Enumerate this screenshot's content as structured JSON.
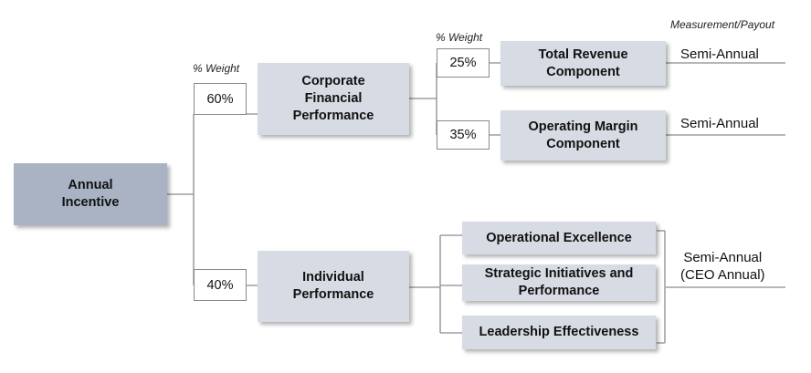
{
  "headers": {
    "weight_left": "% Weight",
    "weight_right": "% Weight",
    "measurement": "Measurement/Payout"
  },
  "nodes": {
    "annual_incentive": "Annual\nIncentive",
    "corporate_financial": "Corporate\nFinancial\nPerformance",
    "individual": "Individual\nPerformance",
    "total_revenue": "Total Revenue\nComponent",
    "operating_margin": "Operating Margin\nComponent",
    "operational_excellence": "Operational Excellence",
    "strategic_initiatives": "Strategic Initiatives and\nPerformance",
    "leadership": "Leadership Effectiveness"
  },
  "weights": {
    "corporate": "60%",
    "individual": "40%",
    "total_revenue": "25%",
    "operating_margin": "35%"
  },
  "payouts": {
    "total_revenue": "Semi-Annual",
    "operating_margin": "Semi-Annual",
    "individual": "Semi-Annual\n(CEO Annual)"
  }
}
